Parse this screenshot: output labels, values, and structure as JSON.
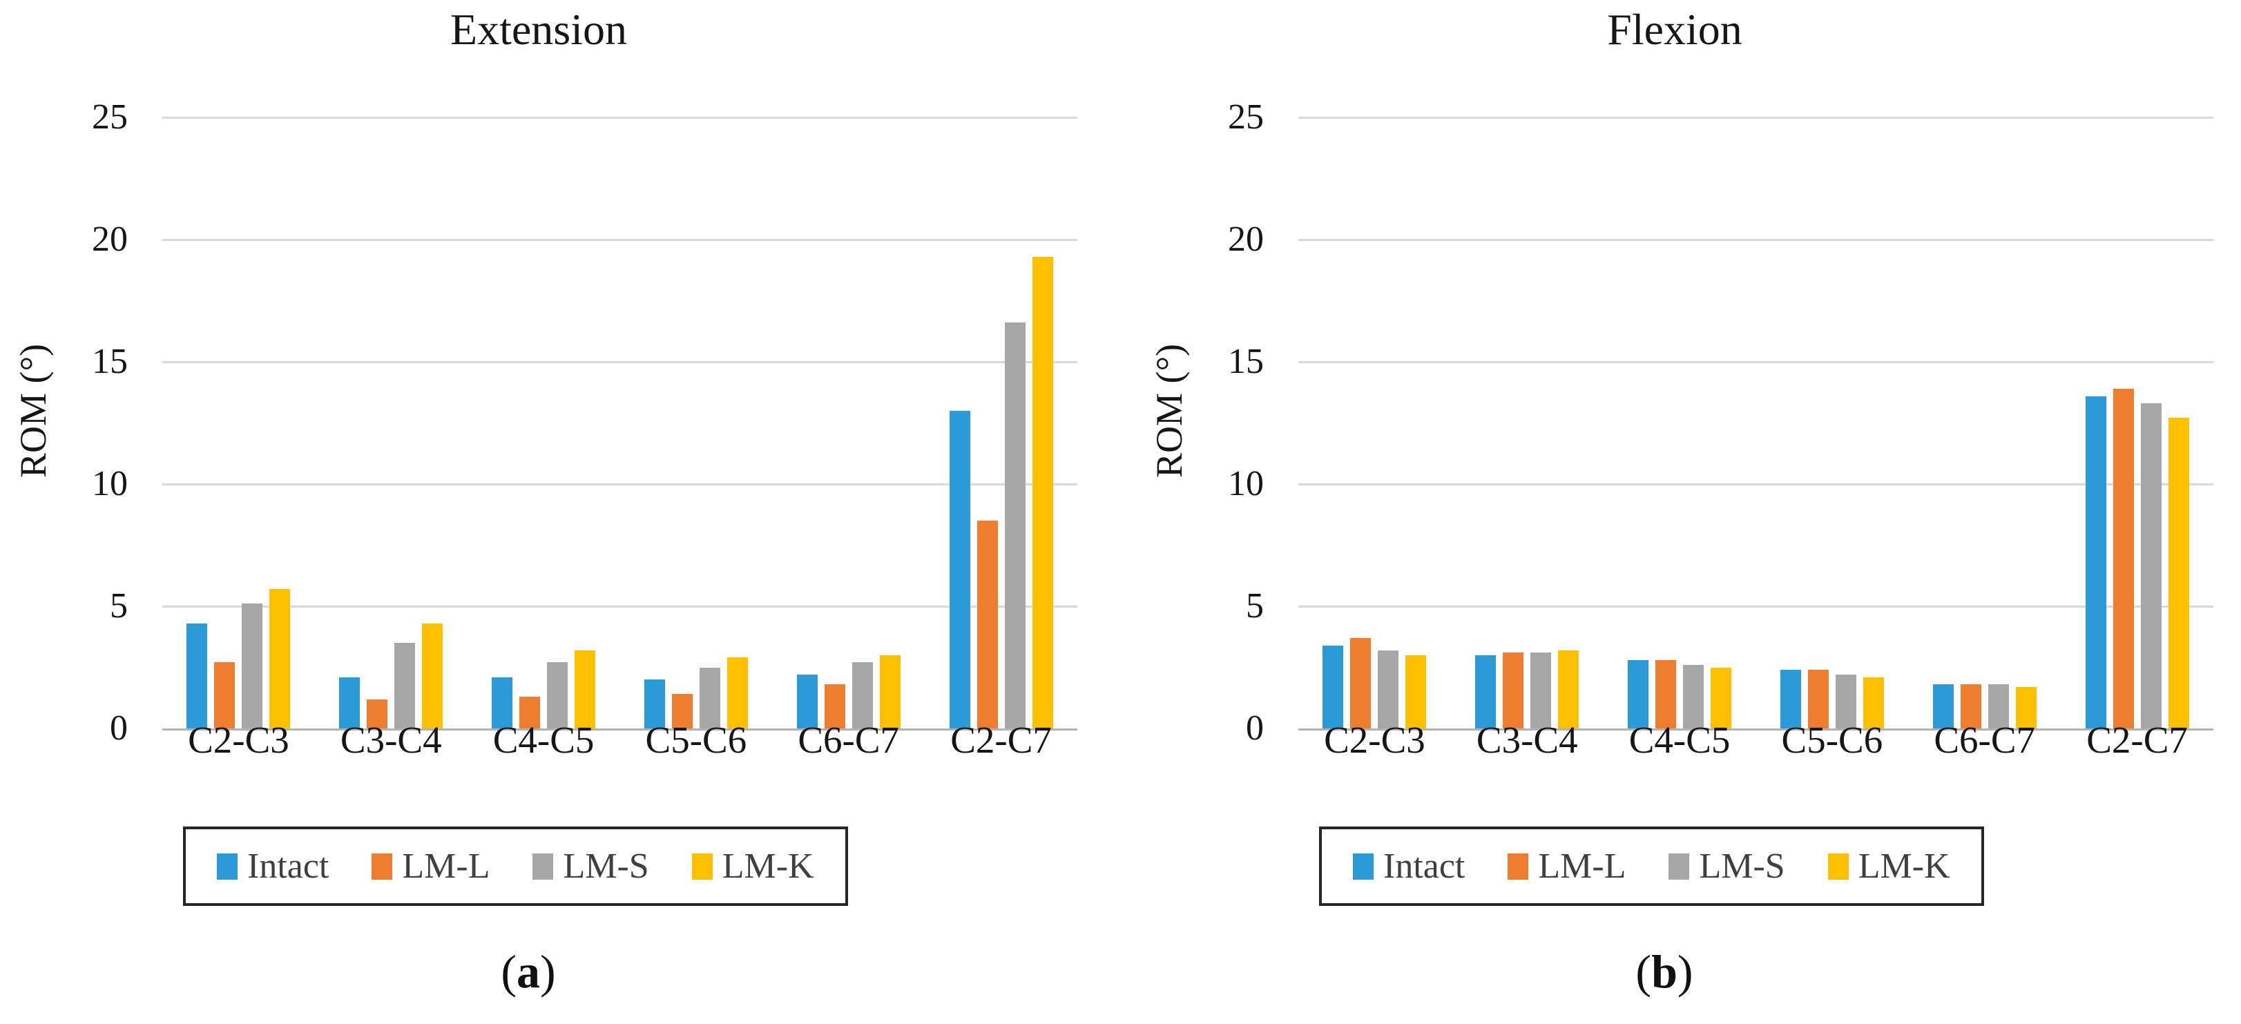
{
  "y_axis": {
    "label": "ROM (°)",
    "max": 25,
    "ticks": [
      25,
      20,
      15,
      10,
      5,
      0
    ],
    "grid": true
  },
  "colors": {
    "intact_blue": "#2B9BD7",
    "lml_orange": "#EE7D30",
    "lms_gray": "#A7A7A7",
    "lmk_yellow": "#FFC000",
    "gridline": "#D9D9D9",
    "axis_line": "#B3B3B3",
    "legend_border": "#262626",
    "legend_text": "#3F3F3F"
  },
  "legend_labels": [
    "Intact",
    "LM-L",
    "LM-S",
    "LM-K"
  ],
  "chart_data": [
    {
      "type": "bar",
      "title": "Extension",
      "caption_prefix": "(",
      "caption_letter": "a",
      "caption_suffix": ")",
      "xlabel": "",
      "ylabel": "ROM (°)",
      "ylim": [
        0,
        25
      ],
      "yticks": [
        25,
        20,
        15,
        10,
        5,
        0
      ],
      "grid": true,
      "legend_position": "bottom",
      "categories": [
        "C2-C3",
        "C3-C4",
        "C4-C5",
        "C5-C6",
        "C6-C7",
        "C2-C7"
      ],
      "series": [
        {
          "name": "Intact",
          "color": "#2B9BD7",
          "values": [
            4.3,
            2.1,
            2.1,
            2.0,
            2.2,
            13.0
          ]
        },
        {
          "name": "LM-L",
          "color": "#EE7D30",
          "values": [
            2.7,
            1.2,
            1.3,
            1.4,
            1.8,
            8.5
          ]
        },
        {
          "name": "LM-S",
          "color": "#A7A7A7",
          "values": [
            5.1,
            3.5,
            2.7,
            2.5,
            2.7,
            16.6
          ]
        },
        {
          "name": "LM-K",
          "color": "#FFC000",
          "values": [
            5.7,
            4.3,
            3.2,
            2.9,
            3.0,
            19.3
          ]
        }
      ]
    },
    {
      "type": "bar",
      "title": "Flexion",
      "caption_prefix": "(",
      "caption_letter": "b",
      "caption_suffix": ")",
      "xlabel": "",
      "ylabel": "ROM (°)",
      "ylim": [
        0,
        25
      ],
      "yticks": [
        25,
        20,
        15,
        10,
        5,
        0
      ],
      "grid": true,
      "legend_position": "bottom",
      "categories": [
        "C2-C3",
        "C3-C4",
        "C4-C5",
        "C5-C6",
        "C6-C7",
        "C2-C7"
      ],
      "series": [
        {
          "name": "Intact",
          "color": "#2B9BD7",
          "values": [
            3.4,
            3.0,
            2.8,
            2.4,
            1.8,
            13.6
          ]
        },
        {
          "name": "LM-L",
          "color": "#EE7D30",
          "values": [
            3.7,
            3.1,
            2.8,
            2.4,
            1.8,
            13.9
          ]
        },
        {
          "name": "LM-S",
          "color": "#A7A7A7",
          "values": [
            3.2,
            3.1,
            2.6,
            2.2,
            1.8,
            13.3
          ]
        },
        {
          "name": "LM-K",
          "color": "#FFC000",
          "values": [
            3.0,
            3.2,
            2.5,
            2.1,
            1.7,
            12.7
          ]
        }
      ]
    }
  ]
}
